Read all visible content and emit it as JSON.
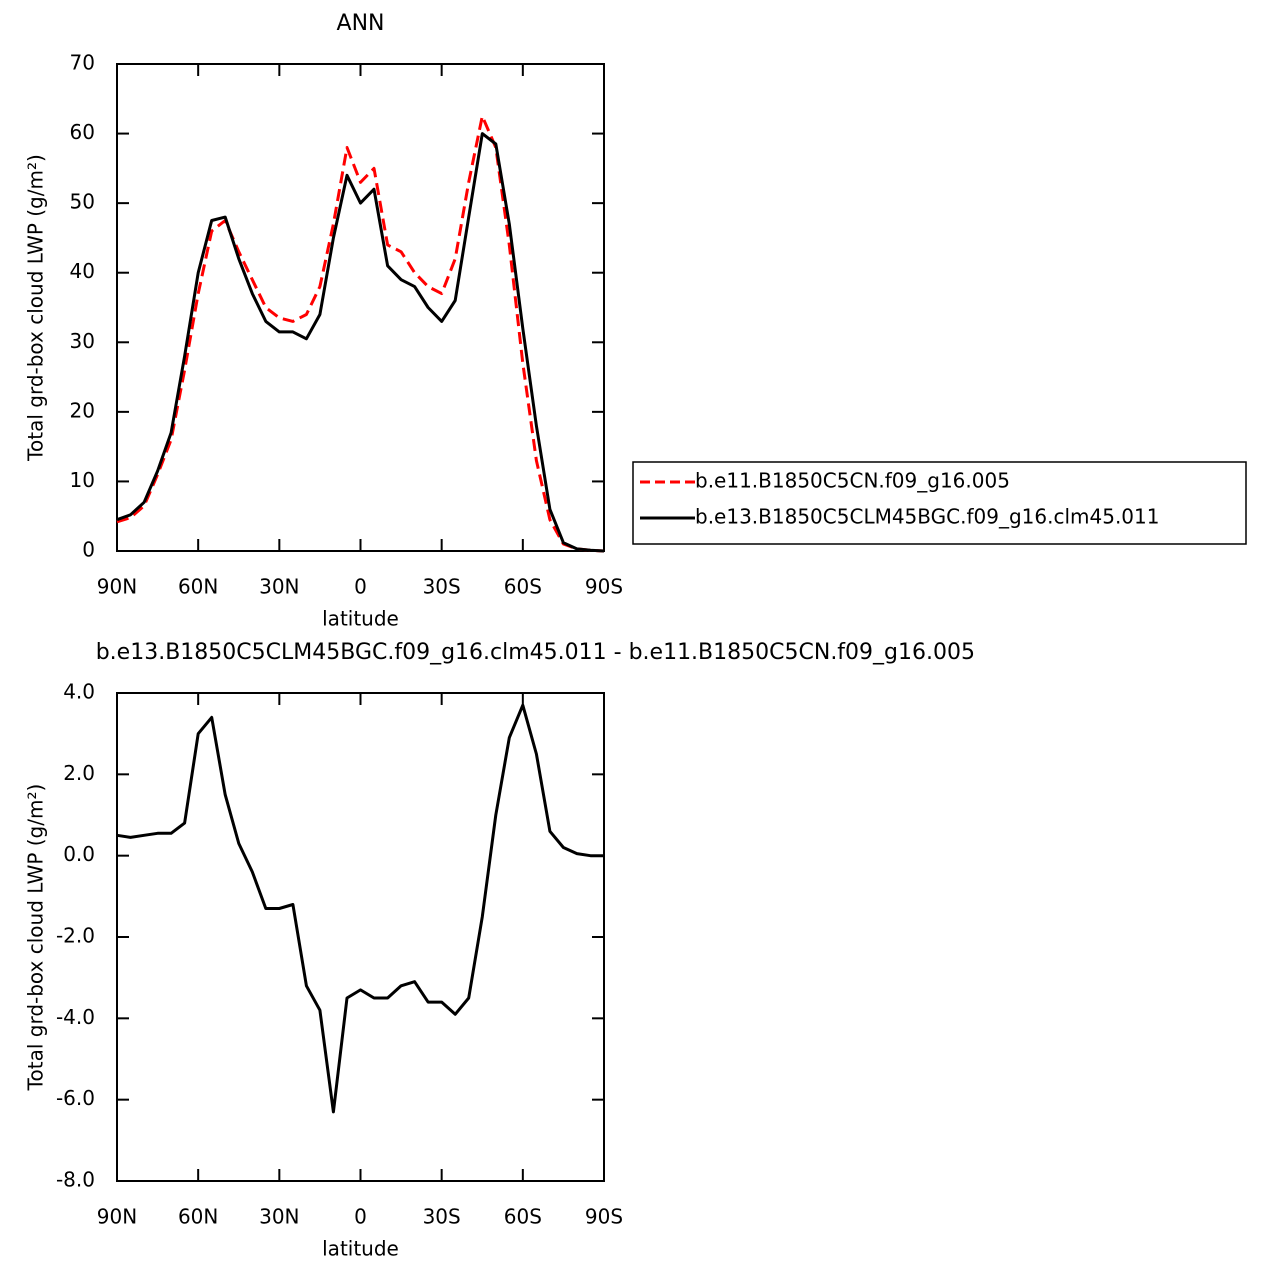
{
  "chart_data": [
    {
      "type": "line",
      "title": "ANN",
      "xlabel": "latitude",
      "ylabel": "Total grd-box cloud LWP (g/m²)",
      "x": [
        90,
        85,
        80,
        75,
        70,
        65,
        60,
        55,
        50,
        45,
        40,
        35,
        30,
        25,
        20,
        15,
        10,
        5,
        0,
        -5,
        -10,
        -15,
        -20,
        -25,
        -30,
        -35,
        -40,
        -45,
        -50,
        -55,
        -60,
        -65,
        -70,
        -75,
        -80,
        -85,
        -90
      ],
      "series": [
        {
          "name": "b.e11.B1850C5CN.f09_g16.005",
          "color": "#ff0000",
          "dash": true,
          "values": [
            4.2,
            4.8,
            6.5,
            11,
            16,
            26,
            37,
            46,
            47.5,
            43,
            39,
            35,
            33.5,
            33,
            34,
            38,
            47,
            58,
            53,
            55,
            44,
            43,
            40,
            38,
            37,
            42,
            53,
            62.5,
            58,
            44,
            27,
            13,
            4.5,
            1,
            0.3,
            0.1,
            0
          ]
        },
        {
          "name": "b.e13.B1850C5CLM45BGC.f09_g16.clm45.011",
          "color": "#000000",
          "dash": false,
          "values": [
            4.5,
            5.2,
            7,
            11.5,
            17,
            28,
            40,
            47.5,
            48,
            42,
            37,
            33,
            31.5,
            31.5,
            30.5,
            34,
            45,
            54,
            50,
            52,
            41,
            39,
            38,
            35,
            33,
            36,
            48,
            60,
            58.5,
            47,
            32,
            18,
            6,
            1.2,
            0.3,
            0.1,
            0
          ]
        }
      ],
      "xlim": [
        90,
        -90
      ],
      "xticks": [
        {
          "value": 90,
          "label": "90N"
        },
        {
          "value": 60,
          "label": "60N"
        },
        {
          "value": 30,
          "label": "30N"
        },
        0,
        {
          "value": -30,
          "label": "30S"
        },
        {
          "value": -60,
          "label": "60S"
        },
        {
          "value": -90,
          "label": "90S"
        }
      ],
      "ylim": [
        0,
        70
      ],
      "yticks": [
        0,
        10,
        20,
        30,
        40,
        50,
        60,
        70
      ]
    },
    {
      "type": "line",
      "title": "b.e13.B1850C5CLM45BGC.f09_g16.clm45.011 - b.e11.B1850C5CN.f09_g16.005",
      "xlabel": "latitude",
      "ylabel": "Total grd-box cloud LWP (g/m²)",
      "x": [
        90,
        85,
        80,
        75,
        70,
        65,
        60,
        55,
        50,
        45,
        40,
        35,
        30,
        25,
        20,
        15,
        10,
        5,
        0,
        -5,
        -10,
        -15,
        -20,
        -25,
        -30,
        -35,
        -40,
        -45,
        -50,
        -55,
        -60,
        -65,
        -70,
        -75,
        -80,
        -85,
        -90
      ],
      "series": [
        {
          "color": "#000000",
          "dash": false,
          "values": [
            0.5,
            0.45,
            0.5,
            0.55,
            0.55,
            0.8,
            3.0,
            3.4,
            1.5,
            0.3,
            -0.4,
            -1.3,
            -1.3,
            -1.2,
            -3.2,
            -3.8,
            -6.3,
            -3.5,
            -3.3,
            -3.5,
            -3.5,
            -3.2,
            -3.1,
            -3.6,
            -3.6,
            -3.9,
            -3.5,
            -1.5,
            1.0,
            2.9,
            3.7,
            2.5,
            0.6,
            0.2,
            0.05,
            0,
            0
          ]
        }
      ],
      "xlim": [
        90,
        -90
      ],
      "xticks": [
        {
          "value": 90,
          "label": "90N"
        },
        {
          "value": 60,
          "label": "60N"
        },
        {
          "value": 30,
          "label": "30N"
        },
        0,
        {
          "value": -30,
          "label": "30S"
        },
        {
          "value": -60,
          "label": "60S"
        },
        {
          "value": -90,
          "label": "90S"
        }
      ],
      "ylim": [
        -8,
        4
      ],
      "yticks": [
        {
          "value": -8,
          "label": "-8.0"
        },
        {
          "value": -6,
          "label": "-6.0"
        },
        {
          "value": -4,
          "label": "-4.0"
        },
        {
          "value": -2,
          "label": "-2.0"
        },
        {
          "value": 0,
          "label": "0.0"
        },
        {
          "value": 2,
          "label": "2.0"
        },
        {
          "value": 4,
          "label": "4.0"
        }
      ]
    }
  ]
}
